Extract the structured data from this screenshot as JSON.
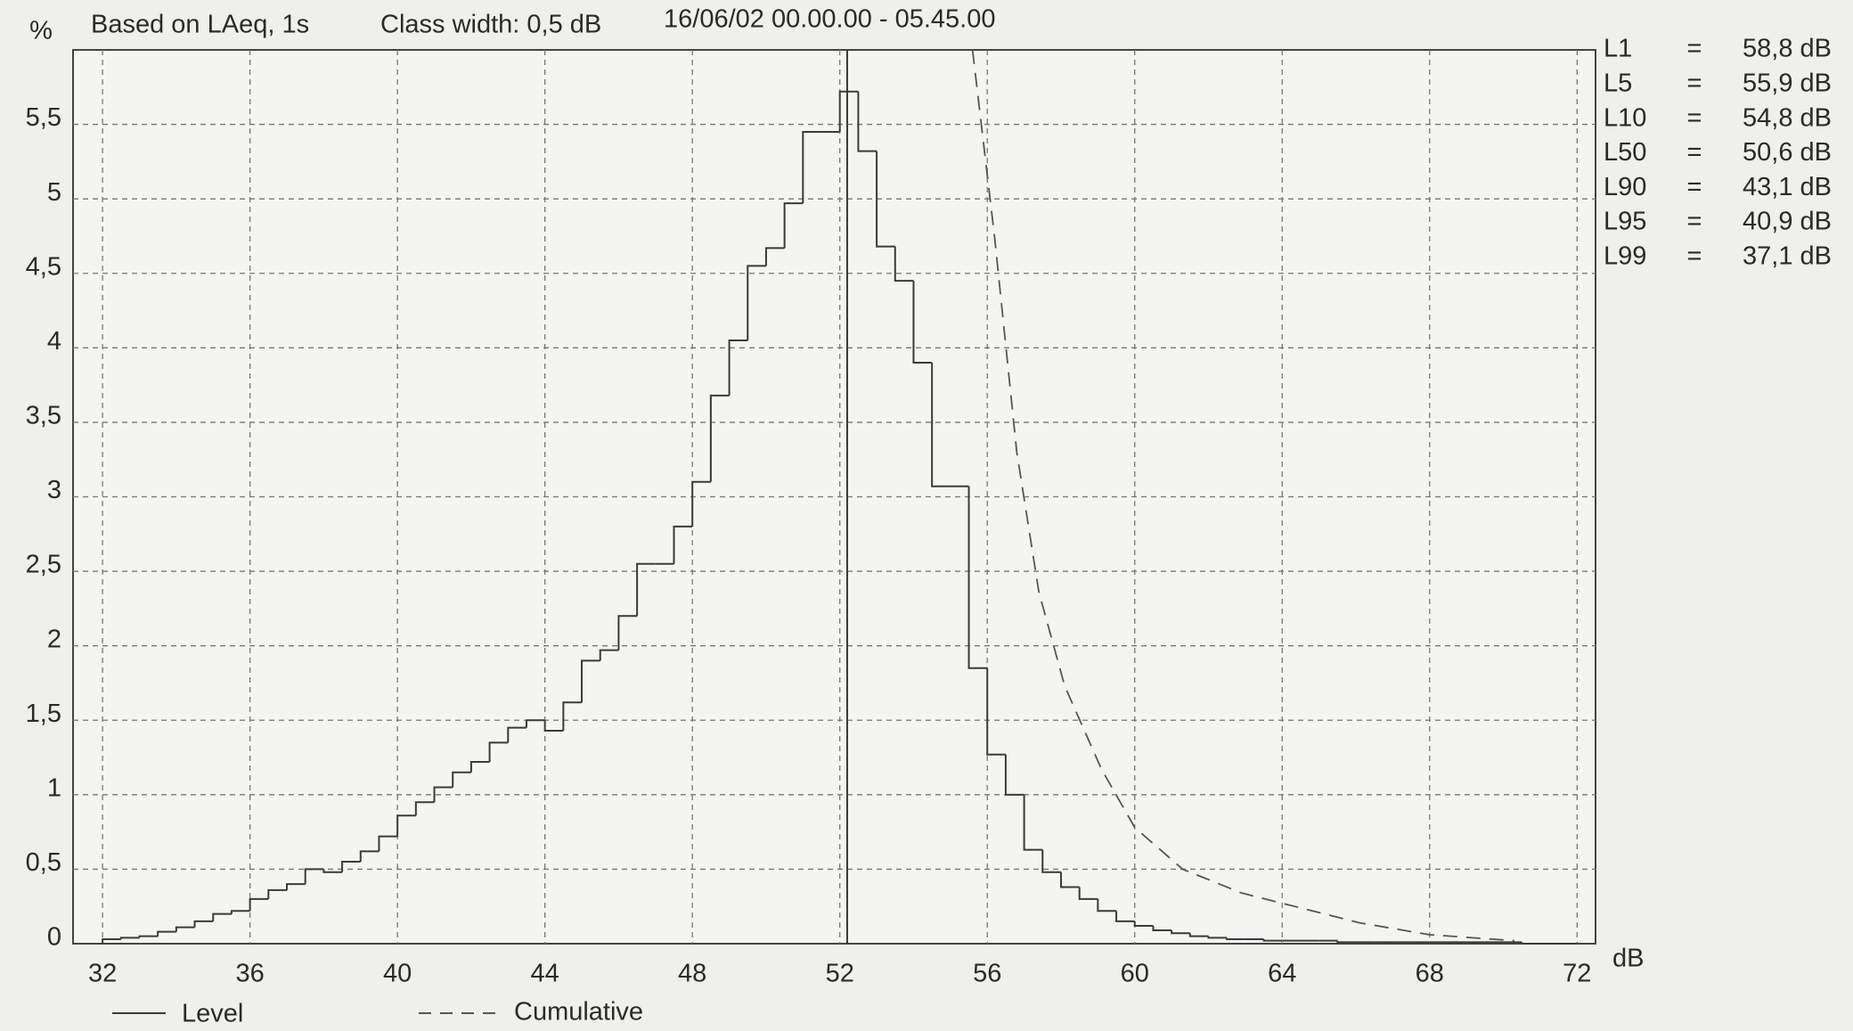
{
  "chart_data": {
    "type": "histogram",
    "y_label": "%",
    "header": [
      "Based on LAeq, 1s",
      "Class width: 0,5 dB",
      "16/06/02 00.00.00 - 05.45.00"
    ],
    "x_unit": "dB",
    "xlim": [
      31.2,
      72.5
    ],
    "xticks": [
      32,
      36,
      40,
      44,
      48,
      52,
      56,
      60,
      64,
      68,
      72
    ],
    "ylim": [
      0,
      6
    ],
    "yticks": [
      0,
      {
        "value": 0.5,
        "label": "0,5"
      },
      1,
      {
        "value": 1.5,
        "label": "1,5"
      },
      2,
      {
        "value": 2.5,
        "label": "2,5"
      },
      3,
      {
        "value": 3.5,
        "label": "3,5"
      },
      4,
      {
        "value": 4.5,
        "label": "4,5"
      },
      5,
      {
        "value": 5.5,
        "label": "5,5"
      }
    ],
    "grid": true,
    "name": "Level",
    "color": "#3a3a3a",
    "bins": [
      32,
      32.5,
      33,
      33.5,
      34,
      34.5,
      35,
      35.5,
      36,
      36.5,
      37,
      37.5,
      38,
      38.5,
      39,
      39.5,
      40,
      40.5,
      41,
      41.5,
      42,
      42.5,
      43,
      43.5,
      44,
      44.5,
      45,
      45.5,
      46,
      46.5,
      47,
      47.5,
      48,
      48.5,
      49,
      49.5,
      50,
      50.5,
      51,
      51.5,
      52,
      52.5,
      53,
      53.5,
      54,
      54.5,
      55,
      55.5,
      56,
      56.5,
      57,
      57.5,
      58,
      58.5,
      59,
      59.5,
      60,
      60.5,
      61,
      61.5,
      62,
      62.5,
      63,
      63.5,
      64,
      64.5,
      65,
      65.5,
      66,
      66.5,
      67,
      67.5,
      68,
      68.5,
      69,
      69.5,
      70,
      70.5,
      71,
      71.5,
      72
    ],
    "values": [
      0.03,
      0.04,
      0.05,
      0.08,
      0.11,
      0.15,
      0.2,
      0.22,
      0.3,
      0.36,
      0.4,
      0.5,
      0.48,
      0.55,
      0.62,
      0.72,
      0.86,
      0.95,
      1.05,
      1.15,
      1.22,
      1.35,
      1.45,
      1.5,
      1.43,
      1.62,
      1.9,
      1.97,
      2.2,
      2.55,
      2.55,
      2.8,
      3.1,
      3.68,
      4.05,
      4.55,
      4.67,
      4.97,
      5.45,
      5.45,
      5.72,
      5.32,
      4.68,
      4.45,
      3.9,
      3.07,
      3.07,
      1.85,
      1.27,
      1.0,
      0.63,
      0.48,
      0.38,
      0.3,
      0.22,
      0.15,
      0.12,
      0.09,
      0.07,
      0.05,
      0.04,
      0.03,
      0.03,
      0.02,
      0.02,
      0.02,
      0.02,
      0.01,
      0.01,
      0.01,
      0.01,
      0.01,
      0.01,
      0.01,
      0.01,
      0.01,
      0.01,
      0,
      0,
      0
    ],
    "vline": 52.2,
    "line": {
      "name": "Cumulative",
      "color": "#555555",
      "x": [
        55.6,
        56.2,
        56.8,
        57.4,
        58.1,
        59.1,
        60.0,
        61.3,
        62.9,
        64.5,
        66.1,
        68.0,
        70.3
      ],
      "values": [
        6.0,
        4.74,
        3.3,
        2.36,
        1.73,
        1.17,
        0.78,
        0.5,
        0.34,
        0.24,
        0.14,
        0.06,
        0.02
      ]
    },
    "stats_separator": "=",
    "stats": [
      {
        "label": "L1",
        "value": "58,8 dB"
      },
      {
        "label": "L5",
        "value": "55,9 dB"
      },
      {
        "label": "L10",
        "value": "54,8 dB"
      },
      {
        "label": "L50",
        "value": "50,6 dB"
      },
      {
        "label": "L90",
        "value": "43,1 dB"
      },
      {
        "label": "L95",
        "value": "40,9 dB"
      },
      {
        "label": "L99",
        "value": "37,1 dB"
      }
    ]
  }
}
